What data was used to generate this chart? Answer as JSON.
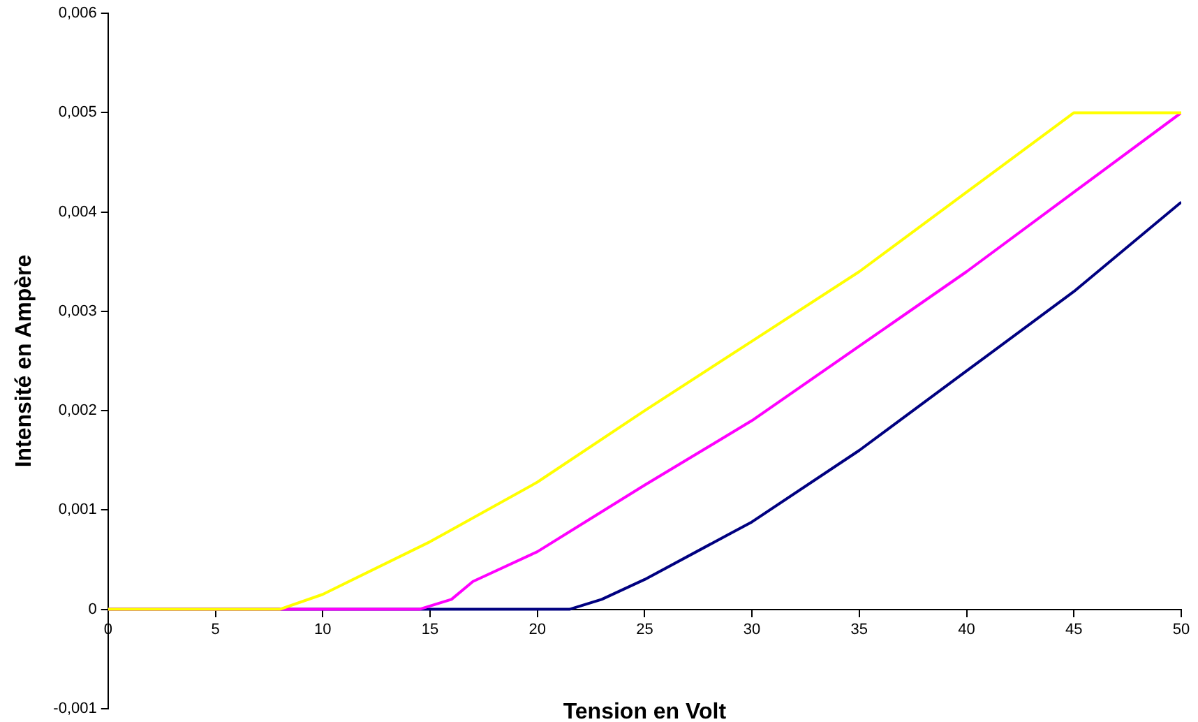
{
  "chart_data": {
    "type": "line",
    "xlabel": "Tension en Volt",
    "ylabel": "Intensité en Ampère",
    "xlim": [
      0,
      50
    ],
    "xticks": [
      0,
      5,
      10,
      15,
      20,
      25,
      30,
      35,
      40,
      45,
      50
    ],
    "ylim": [
      -0.001,
      0.006
    ],
    "yticks": [
      {
        "value": -0.001,
        "label": "-0,001"
      },
      {
        "value": 0,
        "label": "0"
      },
      {
        "value": 0.001,
        "label": "0,001"
      },
      {
        "value": 0.002,
        "label": "0,002"
      },
      {
        "value": 0.003,
        "label": "0,003"
      },
      {
        "value": 0.004,
        "label": "0,004"
      },
      {
        "value": 0.005,
        "label": "0,005"
      },
      {
        "value": 0.006,
        "label": "0,006"
      }
    ],
    "grid": false,
    "legend": false,
    "marker": "none",
    "line_style": "solid",
    "series": [
      {
        "color": "#ffff00",
        "x": [
          0,
          8,
          10,
          15,
          20,
          25,
          30,
          35,
          40,
          45,
          50
        ],
        "values": [
          0,
          0,
          0.00015,
          0.00068,
          0.00128,
          0.002,
          0.0027,
          0.0034,
          0.0042,
          0.005,
          0.005
        ]
      },
      {
        "color": "#ff00ff",
        "x": [
          0,
          14.5,
          16,
          17,
          20,
          25,
          30,
          35,
          40,
          45,
          50
        ],
        "values": [
          0,
          0,
          0.0001,
          0.00028,
          0.00058,
          0.00125,
          0.0019,
          0.00265,
          0.0034,
          0.0042,
          0.005
        ]
      },
      {
        "color": "#000080",
        "x": [
          0,
          21.5,
          23,
          25,
          30,
          35,
          40,
          45,
          50
        ],
        "values": [
          0,
          0,
          0.0001,
          0.0003,
          0.00088,
          0.0016,
          0.0024,
          0.0032,
          0.0041
        ]
      }
    ]
  }
}
